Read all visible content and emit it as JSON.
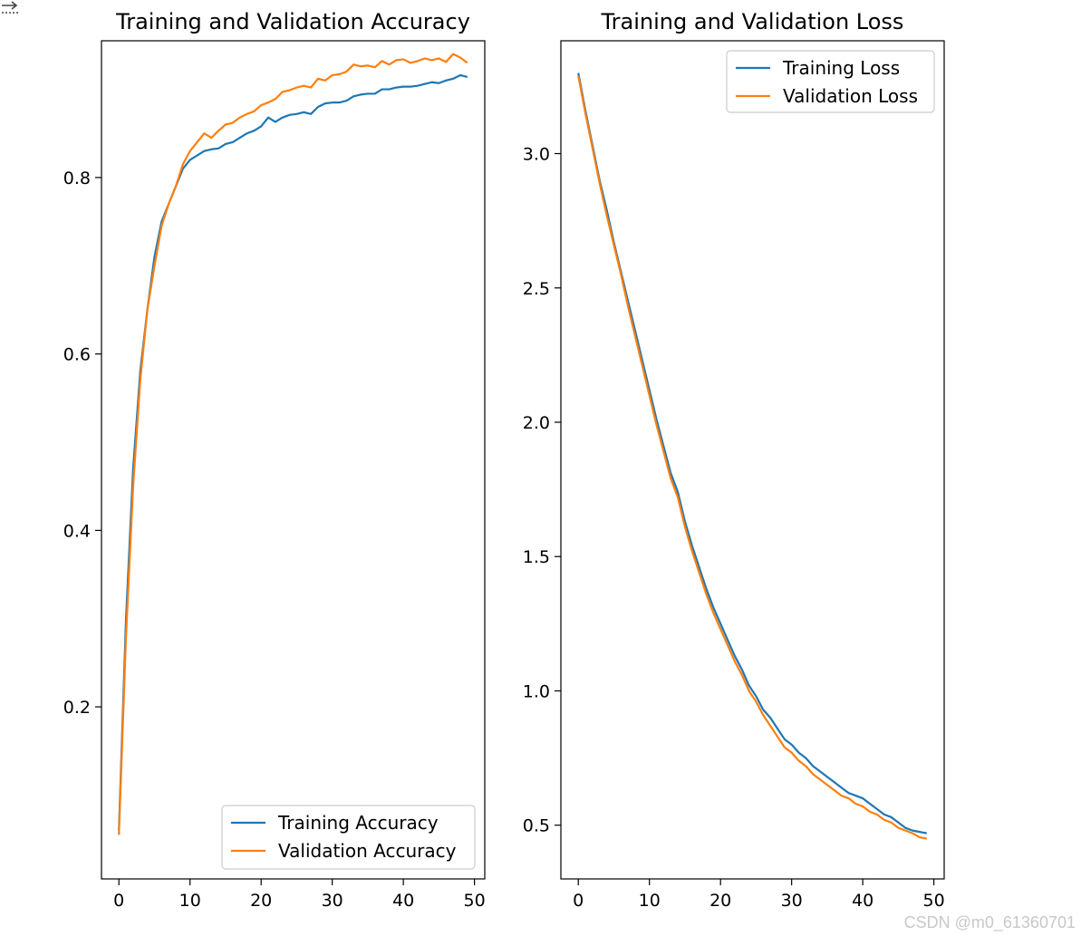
{
  "watermark": "CSDN @m0_61360701",
  "icon": "output-arrow-icon",
  "colors": {
    "training": "#1f77b4",
    "validation": "#ff7f0e",
    "axes": "#000000",
    "text": "#222222"
  },
  "chart_data": [
    {
      "type": "line",
      "title": "Training and Validation Accuracy",
      "xlabel": "",
      "ylabel": "",
      "xlim": [
        -2.45,
        51.45
      ],
      "ylim": [
        0.005,
        0.955
      ],
      "xticks": [
        0,
        10,
        20,
        30,
        40,
        50
      ],
      "yticks": [
        0.2,
        0.4,
        0.6,
        0.8
      ],
      "ytick_labels": [
        "0.2",
        "0.4",
        "0.6",
        "0.8"
      ],
      "legend_position": "lower-right",
      "x": [
        0,
        1,
        2,
        3,
        4,
        5,
        6,
        7,
        8,
        9,
        10,
        11,
        12,
        13,
        14,
        15,
        16,
        17,
        18,
        19,
        20,
        21,
        22,
        23,
        24,
        25,
        26,
        27,
        28,
        29,
        30,
        31,
        32,
        33,
        34,
        35,
        36,
        37,
        38,
        39,
        40,
        41,
        42,
        43,
        44,
        45,
        46,
        47,
        48,
        49
      ],
      "series": [
        {
          "name": "Training Accuracy",
          "color": "#1f77b4",
          "values": [
            0.06,
            0.3,
            0.47,
            0.58,
            0.65,
            0.71,
            0.75,
            0.77,
            0.79,
            0.81,
            0.82,
            0.825,
            0.83,
            0.832,
            0.833,
            0.838,
            0.84,
            0.845,
            0.85,
            0.853,
            0.858,
            0.868,
            0.863,
            0.868,
            0.871,
            0.872,
            0.874,
            0.872,
            0.88,
            0.884,
            0.885,
            0.885,
            0.887,
            0.892,
            0.894,
            0.895,
            0.895,
            0.9,
            0.9,
            0.902,
            0.903,
            0.903,
            0.904,
            0.906,
            0.908,
            0.907,
            0.91,
            0.912,
            0.916,
            0.914
          ]
        },
        {
          "name": "Validation Accuracy",
          "color": "#ff7f0e",
          "values": [
            0.055,
            0.28,
            0.45,
            0.57,
            0.65,
            0.7,
            0.745,
            0.77,
            0.79,
            0.815,
            0.83,
            0.84,
            0.85,
            0.845,
            0.853,
            0.86,
            0.862,
            0.868,
            0.872,
            0.875,
            0.882,
            0.885,
            0.889,
            0.897,
            0.899,
            0.902,
            0.904,
            0.902,
            0.912,
            0.91,
            0.916,
            0.917,
            0.92,
            0.928,
            0.926,
            0.927,
            0.925,
            0.932,
            0.928,
            0.933,
            0.934,
            0.93,
            0.932,
            0.935,
            0.933,
            0.935,
            0.931,
            0.94,
            0.936,
            0.93
          ]
        }
      ]
    },
    {
      "type": "line",
      "title": "Training and Validation Loss",
      "xlabel": "",
      "ylabel": "",
      "xlim": [
        -2.45,
        51.45
      ],
      "ylim": [
        0.3,
        3.42
      ],
      "xticks": [
        0,
        10,
        20,
        30,
        40,
        50
      ],
      "yticks": [
        0.5,
        1.0,
        1.5,
        2.0,
        2.5,
        3.0
      ],
      "ytick_labels": [
        "0.5",
        "1.0",
        "1.5",
        "2.0",
        "2.5",
        "3.0"
      ],
      "legend_position": "upper-right",
      "x": [
        0,
        1,
        2,
        3,
        4,
        5,
        6,
        7,
        8,
        9,
        10,
        11,
        12,
        13,
        14,
        15,
        16,
        17,
        18,
        19,
        20,
        21,
        22,
        23,
        24,
        25,
        26,
        27,
        28,
        29,
        30,
        31,
        32,
        33,
        34,
        35,
        36,
        37,
        38,
        39,
        40,
        41,
        42,
        43,
        44,
        45,
        46,
        47,
        48,
        49
      ],
      "series": [
        {
          "name": "Training Loss",
          "color": "#1f77b4",
          "values": [
            3.3,
            3.16,
            3.03,
            2.9,
            2.79,
            2.67,
            2.56,
            2.45,
            2.34,
            2.23,
            2.12,
            2.01,
            1.91,
            1.81,
            1.74,
            1.63,
            1.54,
            1.46,
            1.38,
            1.31,
            1.25,
            1.19,
            1.13,
            1.08,
            1.02,
            0.98,
            0.93,
            0.9,
            0.86,
            0.82,
            0.8,
            0.77,
            0.75,
            0.72,
            0.7,
            0.68,
            0.66,
            0.64,
            0.62,
            0.61,
            0.6,
            0.58,
            0.56,
            0.54,
            0.53,
            0.51,
            0.49,
            0.48,
            0.475,
            0.47
          ]
        },
        {
          "name": "Validation Loss",
          "color": "#ff7f0e",
          "values": [
            3.29,
            3.15,
            3.02,
            2.89,
            2.77,
            2.66,
            2.55,
            2.43,
            2.32,
            2.21,
            2.1,
            1.99,
            1.89,
            1.79,
            1.72,
            1.61,
            1.52,
            1.44,
            1.36,
            1.29,
            1.23,
            1.17,
            1.11,
            1.06,
            1.0,
            0.96,
            0.91,
            0.87,
            0.83,
            0.79,
            0.77,
            0.74,
            0.72,
            0.69,
            0.67,
            0.65,
            0.63,
            0.61,
            0.6,
            0.58,
            0.57,
            0.55,
            0.54,
            0.52,
            0.51,
            0.49,
            0.48,
            0.47,
            0.455,
            0.45
          ]
        }
      ]
    }
  ]
}
